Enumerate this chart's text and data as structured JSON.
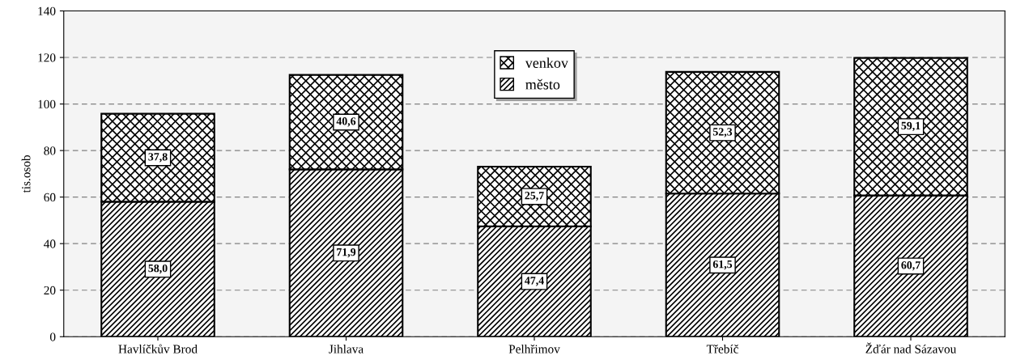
{
  "chart_data": {
    "type": "bar",
    "stacked": true,
    "ylabel": "tis.osob",
    "categories": [
      "Havlíčkův Brod",
      "Jihlava",
      "Pelhřimov",
      "Třebíč",
      "Žďár nad Sázavou"
    ],
    "series": [
      {
        "name": "město",
        "color": "#000000",
        "values": [
          58.0,
          71.9,
          47.4,
          61.5,
          60.7
        ],
        "value_labels": [
          "58,0",
          "71,9",
          "47,4",
          "61,5",
          "60,7"
        ]
      },
      {
        "name": "venkov",
        "color": "#000000",
        "values": [
          37.8,
          40.6,
          25.7,
          52.3,
          59.1
        ],
        "value_labels": [
          "37,8",
          "40,6",
          "25,7",
          "52,3",
          "59,1"
        ]
      }
    ],
    "ylim": [
      0,
      140
    ],
    "yticks": [
      0,
      20,
      40,
      60,
      80,
      100,
      120,
      140
    ],
    "grid": "y",
    "legend": "top"
  }
}
